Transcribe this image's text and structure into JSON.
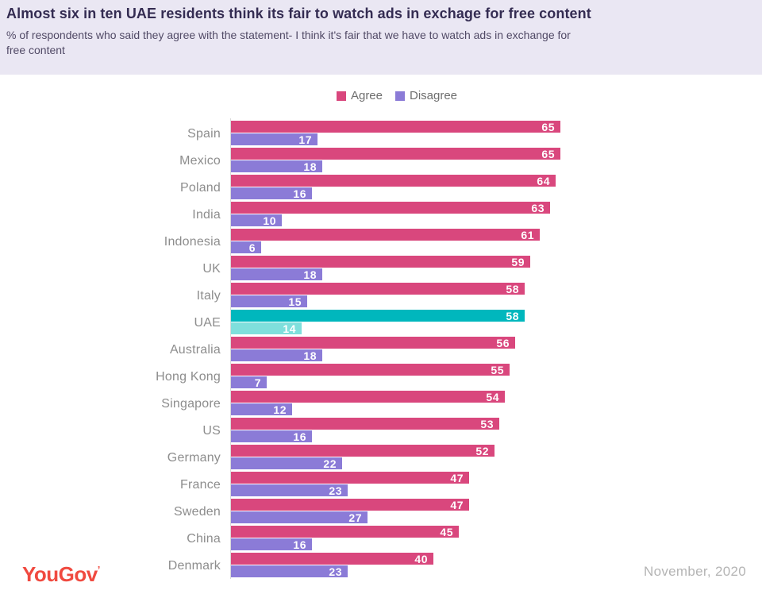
{
  "header": {
    "title": "Almost six in ten UAE residents think its fair to watch ads in exchage for free content",
    "subtitle_line1": "% of respondents who said they agree with the statement- I think it's fair that we have to watch ads in exchange for",
    "subtitle_line2": "free content"
  },
  "legend": {
    "items": [
      {
        "label": "Agree",
        "color": "#d9477d"
      },
      {
        "label": "Disagree",
        "color": "#8b7bd7"
      }
    ]
  },
  "chart_data": {
    "type": "bar",
    "orientation": "horizontal",
    "title": "Almost six in ten UAE residents think its fair to watch ads in exchage for free content",
    "categories": [
      "Spain",
      "Mexico",
      "Poland",
      "India",
      "Indonesia",
      "UK",
      "Italy",
      "UAE",
      "Australia",
      "Hong Kong",
      "Singapore",
      "US",
      "Germany",
      "France",
      "Sweden",
      "China",
      "Denmark"
    ],
    "series": [
      {
        "name": "Agree",
        "values": [
          65,
          65,
          64,
          63,
          61,
          59,
          58,
          58,
          56,
          55,
          54,
          53,
          52,
          47,
          47,
          45,
          40
        ]
      },
      {
        "name": "Disagree",
        "values": [
          17,
          18,
          16,
          10,
          6,
          18,
          15,
          14,
          18,
          7,
          12,
          16,
          22,
          23,
          27,
          16,
          23
        ]
      }
    ],
    "highlight_category": "UAE",
    "xlim": [
      0,
      100
    ],
    "value_labels": "inside-end",
    "legend_position": "top-center",
    "grid": false,
    "colors": {
      "agree": "#d9477d",
      "disagree": "#8b7bd7",
      "highlight_agree": "#00b7bd",
      "highlight_disagree": "#7fdfdc",
      "label": "#8d8d8d"
    }
  },
  "footer": {
    "logo_text": "YouGov",
    "logo_mark": "’",
    "logo_color": "#f04a40",
    "date": "November, 2020"
  }
}
